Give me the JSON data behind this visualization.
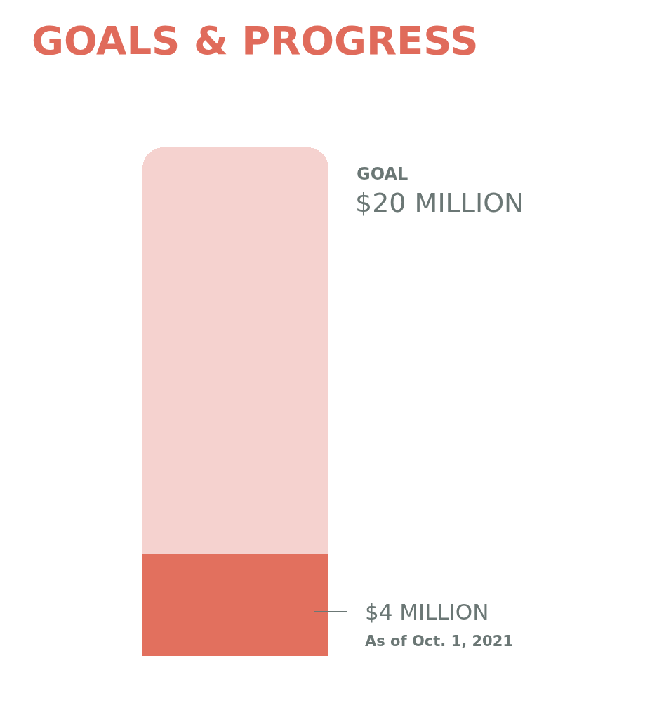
{
  "chart_data": {
    "type": "bar",
    "title": "GOALS & PROGRESS",
    "categories": [
      null
    ],
    "stacked": true,
    "series": [
      {
        "color": "#e2705e",
        "values": [
          4
        ],
        "value_labels": [
          "$4 MILLION"
        ]
      },
      {
        "color": "#f5d2cf",
        "values": [
          16
        ]
      }
    ],
    "totals": [
      "$20 MILLION"
    ],
    "annotations": [
      "GOAL",
      "As of Oct. 1, 2021"
    ],
    "ylim": [
      0,
      20
    ]
  }
}
